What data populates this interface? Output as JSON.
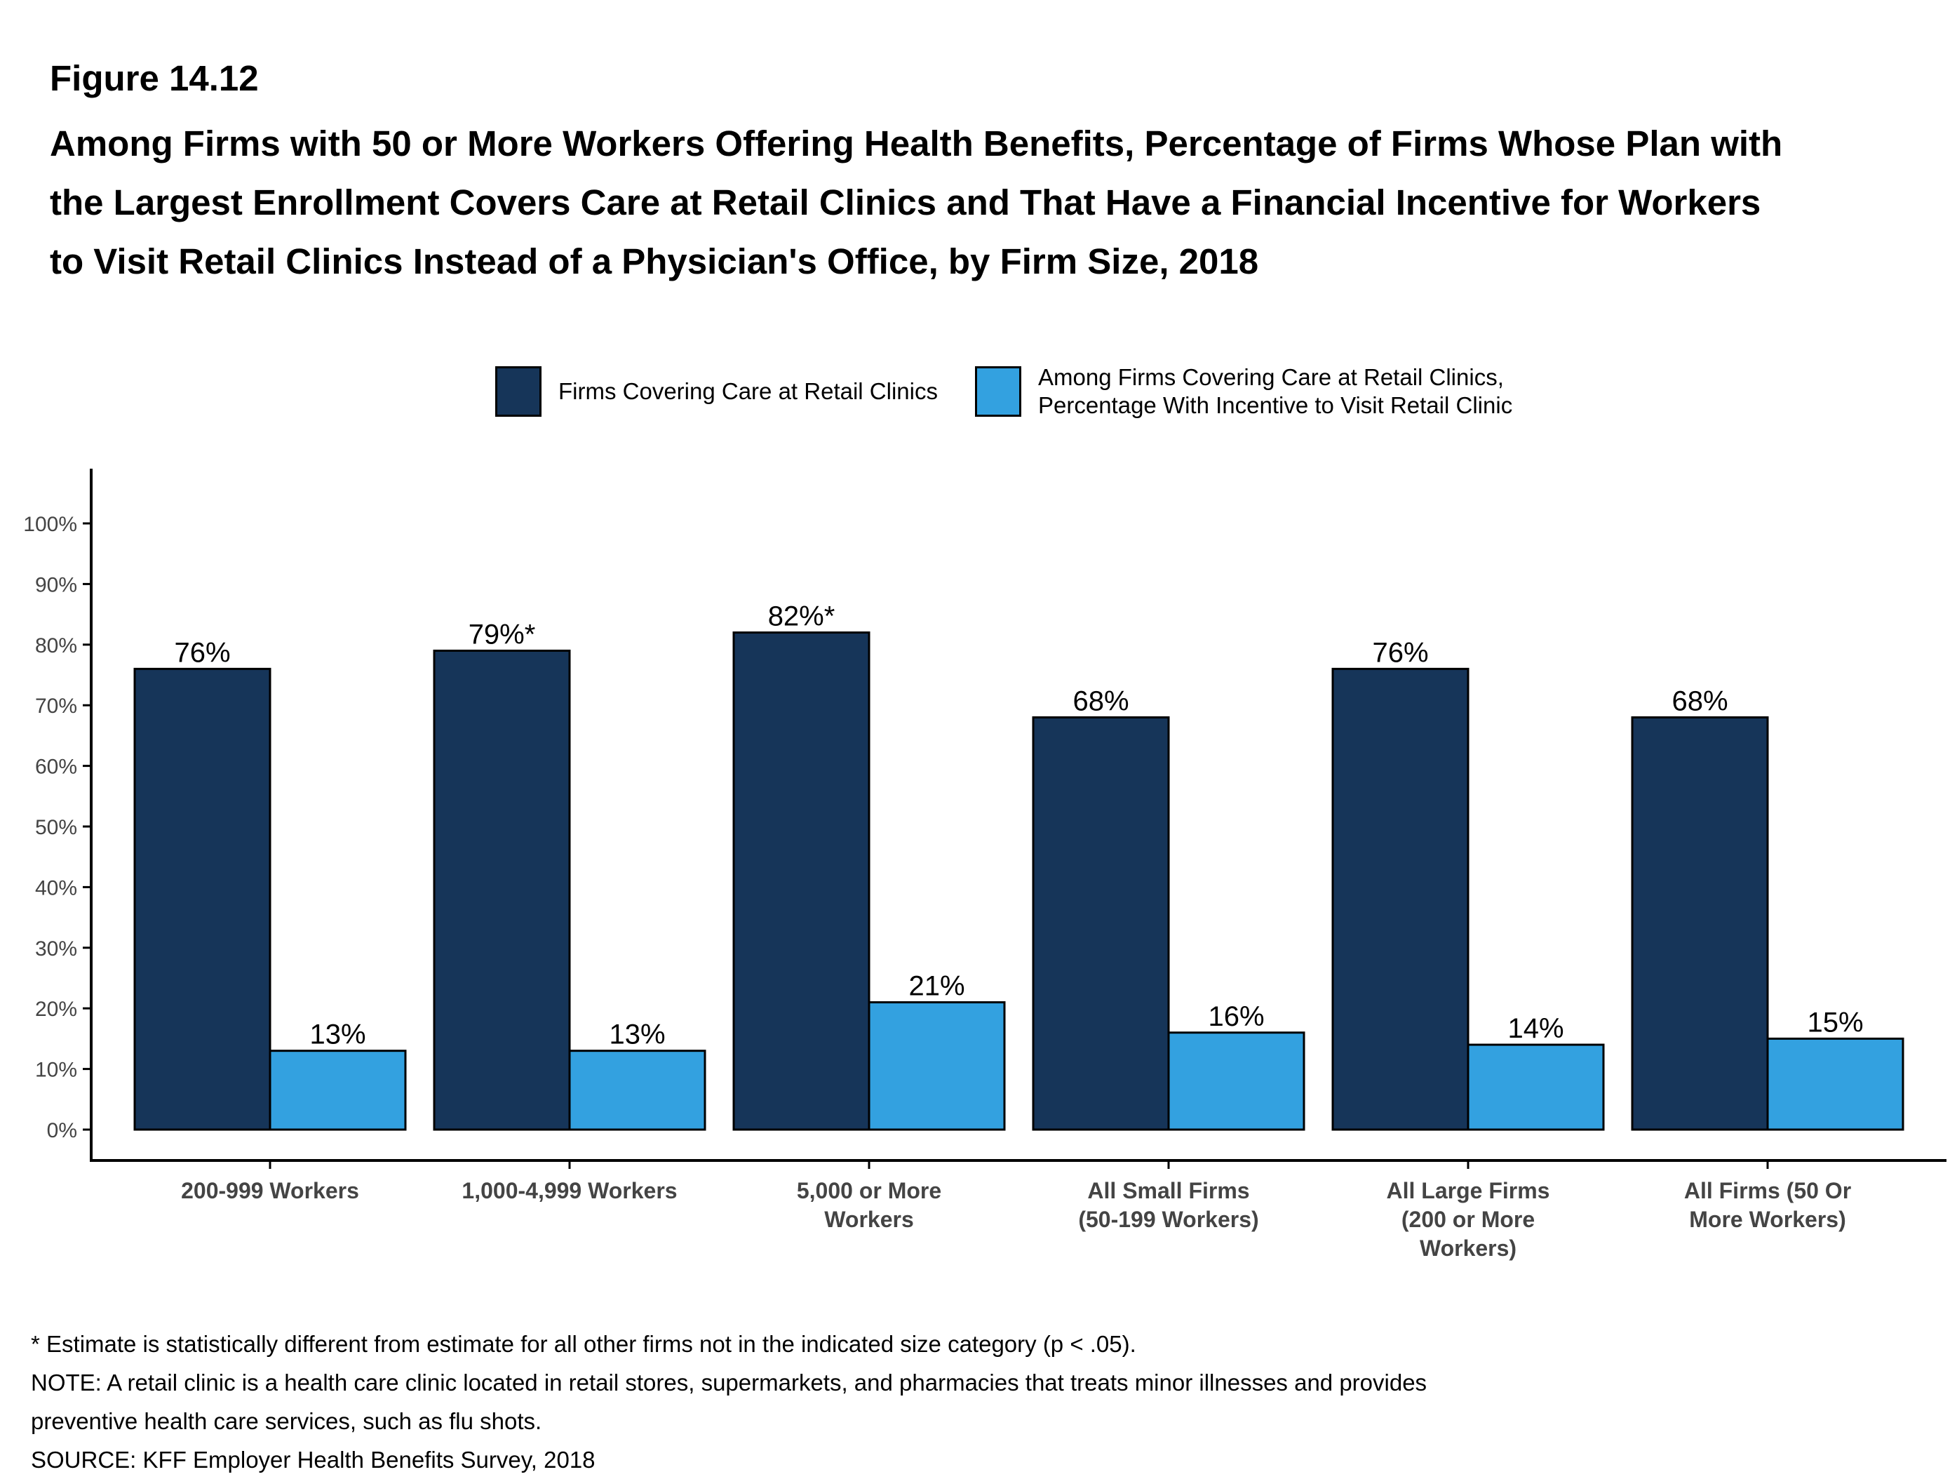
{
  "figure": {
    "label": "Figure 14.12",
    "title": "Among Firms with 50 or More Workers Offering Health Benefits, Percentage of Firms Whose Plan with the Largest Enrollment Covers Care at Retail Clinics and That Have a Financial Incentive for Workers to Visit Retail Clinics Instead of a Physician's Office, by Firm Size, 2018"
  },
  "legend": [
    {
      "label": "Firms Covering Care at Retail Clinics",
      "color": "#163559"
    },
    {
      "label": "Among Firms Covering Care at Retail Clinics,\nPercentage With Incentive to Visit Retail Clinic",
      "color": "#33a1e0"
    }
  ],
  "chart_data": {
    "type": "bar",
    "categories": [
      "200-999 Workers",
      "1,000-4,999 Workers",
      "5,000 or More Workers",
      "All Small Firms (50-199 Workers)",
      "All Large Firms (200 or More Workers)",
      "All Firms (50 Or More Workers)"
    ],
    "category_lines": [
      [
        "200-999 Workers"
      ],
      [
        "1,000-4,999 Workers"
      ],
      [
        "5,000 or More",
        "Workers"
      ],
      [
        "All Small Firms",
        "(50-199 Workers)"
      ],
      [
        "All Large Firms",
        "(200 or More",
        "Workers)"
      ],
      [
        "All Firms (50 Or",
        "More Workers)"
      ]
    ],
    "series": [
      {
        "name": "Firms Covering Care at Retail Clinics",
        "color": "#163559",
        "values": [
          76,
          79,
          82,
          68,
          76,
          68
        ],
        "labels": [
          "76%",
          "79%*",
          "82%*",
          "68%",
          "76%",
          "68%"
        ]
      },
      {
        "name": "Among Firms Covering Care at Retail Clinics, Percentage With Incentive to Visit Retail Clinic",
        "color": "#33a1e0",
        "values": [
          13,
          13,
          21,
          16,
          14,
          15
        ],
        "labels": [
          "13%",
          "13%",
          "21%",
          "16%",
          "14%",
          "15%"
        ]
      }
    ],
    "y_ticks": [
      "0%",
      "10%",
      "20%",
      "30%",
      "40%",
      "50%",
      "60%",
      "70%",
      "80%",
      "90%",
      "100%"
    ],
    "ylim": [
      0,
      100
    ],
    "grid": false,
    "legend_position": "top"
  },
  "notes": [
    "* Estimate is statistically different from estimate for all other firms not in the indicated size category (p < .05).",
    "NOTE: A retail clinic is a health care clinic located in retail stores, supermarkets, and pharmacies that treats minor illnesses and provides",
    "preventive health care services, such as flu shots.",
    "SOURCE: KFF Employer Health Benefits Survey, 2018"
  ]
}
